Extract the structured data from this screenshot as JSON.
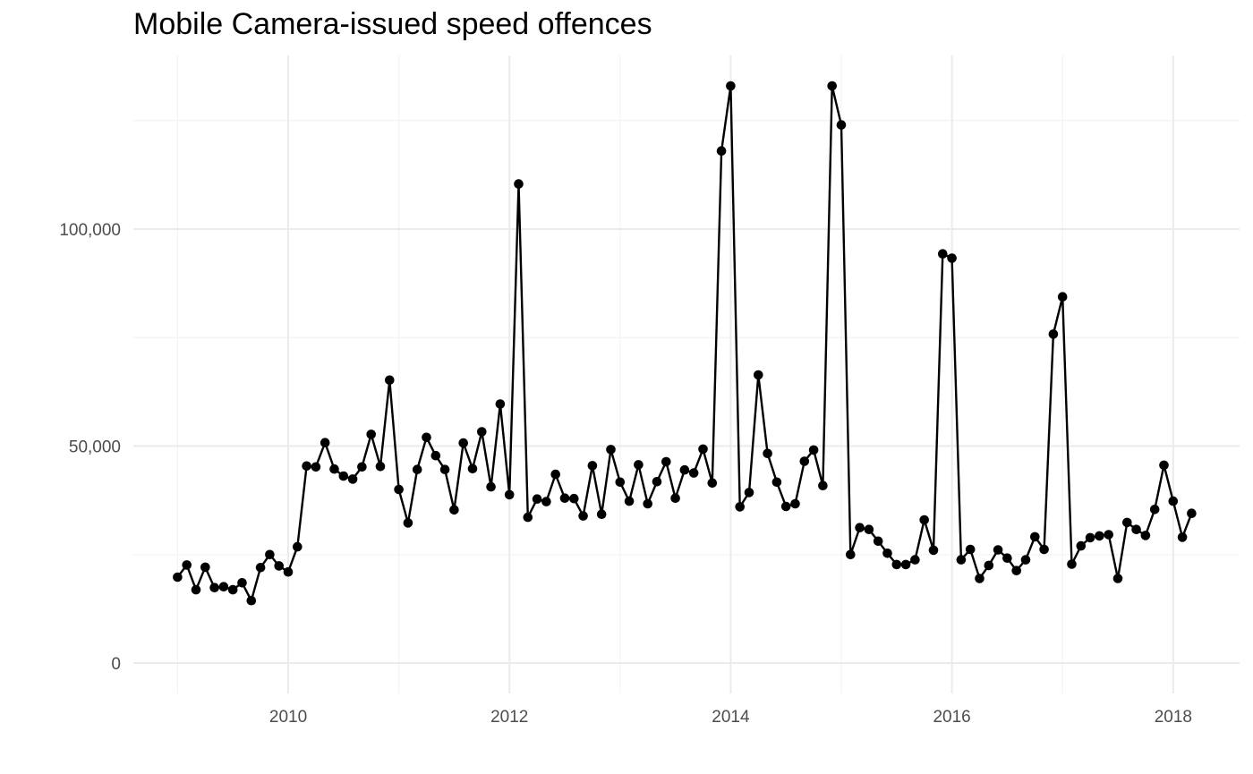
{
  "chart_data": {
    "type": "line",
    "title": "Mobile Camera-issued speed offences",
    "xlabel": "",
    "ylabel": "",
    "x_ticks": [
      2010,
      2012,
      2014,
      2016,
      2018
    ],
    "x_tick_labels": [
      "2010",
      "2012",
      "2014",
      "2016",
      "2018"
    ],
    "y_ticks": [
      0,
      50000,
      100000
    ],
    "y_tick_labels": [
      "0",
      "50,000",
      "100,000"
    ],
    "xlim": [
      2008.6,
      2018.6
    ],
    "ylim": [
      -7000,
      140000
    ],
    "grid": true,
    "legend": "none",
    "x": [
      "2009-01",
      "2009-02",
      "2009-03",
      "2009-04",
      "2009-05",
      "2009-06",
      "2009-07",
      "2009-08",
      "2009-09",
      "2009-10",
      "2009-11",
      "2009-12",
      "2010-01",
      "2010-02",
      "2010-03",
      "2010-04",
      "2010-05",
      "2010-06",
      "2010-07",
      "2010-08",
      "2010-09",
      "2010-10",
      "2010-11",
      "2010-12",
      "2011-01",
      "2011-02",
      "2011-03",
      "2011-04",
      "2011-05",
      "2011-06",
      "2011-07",
      "2011-08",
      "2011-09",
      "2011-10",
      "2011-11",
      "2011-12",
      "2012-01",
      "2012-02",
      "2012-03",
      "2012-04",
      "2012-05",
      "2012-06",
      "2012-07",
      "2012-08",
      "2012-09",
      "2012-10",
      "2012-11",
      "2012-12",
      "2013-01",
      "2013-02",
      "2013-03",
      "2013-04",
      "2013-05",
      "2013-06",
      "2013-07",
      "2013-08",
      "2013-09",
      "2013-10",
      "2013-11",
      "2013-12",
      "2014-01",
      "2014-02",
      "2014-03",
      "2014-04",
      "2014-05",
      "2014-06",
      "2014-07",
      "2014-08",
      "2014-09",
      "2014-10",
      "2014-11",
      "2014-12",
      "2015-01",
      "2015-02",
      "2015-03",
      "2015-04",
      "2015-05",
      "2015-06",
      "2015-07",
      "2015-08",
      "2015-09",
      "2015-10",
      "2015-11",
      "2015-12",
      "2016-01",
      "2016-02",
      "2016-03",
      "2016-04",
      "2016-05",
      "2016-06",
      "2016-07",
      "2016-08",
      "2016-09",
      "2016-10",
      "2016-11",
      "2016-12",
      "2017-01",
      "2017-02",
      "2017-03",
      "2017-04",
      "2017-05",
      "2017-06",
      "2017-07",
      "2017-08",
      "2017-09",
      "2017-10",
      "2017-11",
      "2017-12",
      "2018-01",
      "2018-02",
      "2018-03"
    ],
    "series": [
      {
        "color": "#000000",
        "values": [
          19800,
          22600,
          16900,
          22100,
          17400,
          17600,
          16900,
          18500,
          14400,
          22000,
          25000,
          22400,
          21000,
          26800,
          45400,
          45200,
          50800,
          44700,
          43100,
          42400,
          45200,
          52700,
          45300,
          65200,
          40000,
          32300,
          44600,
          52000,
          47800,
          44600,
          35300,
          50700,
          44800,
          53300,
          40600,
          59700,
          38800,
          110400,
          33600,
          37800,
          37200,
          43500,
          38000,
          37900,
          33900,
          45500,
          34300,
          49200,
          41700,
          37300,
          45700,
          36700,
          41800,
          46400,
          38000,
          44500,
          43800,
          49300,
          41500,
          118000,
          133000,
          36000,
          39300,
          66400,
          48300,
          41700,
          36100,
          36700,
          46500,
          49100,
          40900,
          133000,
          124000,
          25000,
          31200,
          30800,
          28100,
          25300,
          22700,
          22700,
          23800,
          33000,
          26000,
          94300,
          93300,
          23800,
          26200,
          19500,
          22500,
          26100,
          24200,
          21300,
          23800,
          29100,
          26200,
          75800,
          84400,
          22800,
          27000,
          28900,
          29300,
          29600,
          19500,
          32400,
          30800,
          29400,
          35400,
          45600,
          37300,
          29000,
          34500
        ]
      }
    ]
  }
}
